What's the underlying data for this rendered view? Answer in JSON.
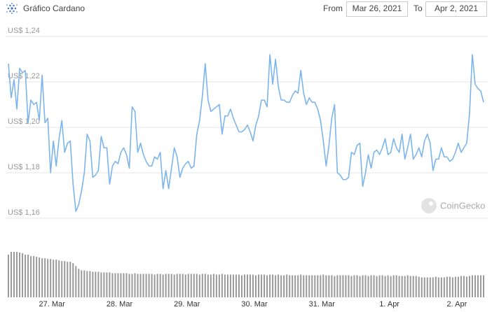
{
  "chart_data": {
    "type": "line",
    "title": "Gráfico Cardano",
    "range": {
      "from_label": "From",
      "from": "Mar 26, 2021",
      "to_label": "To",
      "to": "Apr 2, 2021"
    },
    "watermark": "CoinGecko",
    "color": "#7cb5ec",
    "volume_color": "#999999",
    "grid": true,
    "ylim": [
      1.16,
      1.24
    ],
    "yticks": [
      {
        "value": 1.16,
        "label": "US$ 1,16"
      },
      {
        "value": 1.18,
        "label": "US$ 1,18"
      },
      {
        "value": 1.2,
        "label": "US$ 1,20"
      },
      {
        "value": 1.22,
        "label": "US$ 1,22"
      },
      {
        "value": 1.24,
        "label": "US$ 1,24"
      }
    ],
    "categories": [
      null,
      null,
      null,
      null,
      null,
      null,
      null,
      null,
      null,
      null,
      null,
      null,
      null,
      null,
      null,
      null,
      "27. Mar",
      null,
      null,
      null,
      null,
      null,
      null,
      null,
      null,
      null,
      null,
      null,
      null,
      null,
      null,
      null,
      null,
      null,
      null,
      null,
      null,
      null,
      null,
      null,
      "28. Mar",
      null,
      null,
      null,
      null,
      null,
      null,
      null,
      null,
      null,
      null,
      null,
      null,
      null,
      null,
      null,
      null,
      null,
      null,
      null,
      null,
      null,
      null,
      null,
      "29. Mar",
      null,
      null,
      null,
      null,
      null,
      null,
      null,
      null,
      null,
      null,
      null,
      null,
      null,
      null,
      null,
      null,
      null,
      null,
      null,
      null,
      null,
      null,
      null,
      "30. Mar",
      null,
      null,
      null,
      null,
      null,
      null,
      null,
      null,
      null,
      null,
      null,
      null,
      null,
      null,
      null,
      null,
      null,
      null,
      null,
      null,
      null,
      null,
      null,
      "31. Mar",
      null,
      null,
      null,
      null,
      null,
      null,
      null,
      null,
      null,
      null,
      null,
      null,
      null,
      null,
      null,
      null,
      null,
      null,
      null,
      null,
      null,
      null,
      null,
      "1. Apr",
      null,
      null,
      null,
      null,
      null,
      null,
      null,
      null,
      null,
      null,
      null,
      null,
      null,
      null,
      null,
      null,
      null,
      null,
      null,
      null,
      null,
      null,
      null,
      "2. Apr",
      null,
      null,
      null,
      null,
      null,
      null,
      null,
      null,
      null
    ],
    "values": [
      1.228,
      1.213,
      1.221,
      1.208,
      1.226,
      1.224,
      1.225,
      1.202,
      1.212,
      1.21,
      1.211,
      1.203,
      1.223,
      1.202,
      1.204,
      1.18,
      1.194,
      1.183,
      1.195,
      1.203,
      1.189,
      1.193,
      1.194,
      1.175,
      1.163,
      1.166,
      1.172,
      1.18,
      1.197,
      1.194,
      1.178,
      1.179,
      1.181,
      1.196,
      1.191,
      1.191,
      1.175,
      1.183,
      1.185,
      1.184,
      1.189,
      1.191,
      1.188,
      1.182,
      1.209,
      1.207,
      1.189,
      1.193,
      1.188,
      1.185,
      1.183,
      1.183,
      1.187,
      1.186,
      1.189,
      1.173,
      1.181,
      1.173,
      1.182,
      1.191,
      1.187,
      1.178,
      1.182,
      1.184,
      1.185,
      1.182,
      1.183,
      1.197,
      1.203,
      1.214,
      1.228,
      1.212,
      1.207,
      1.208,
      1.209,
      1.21,
      1.197,
      1.205,
      1.205,
      1.208,
      1.204,
      1.201,
      1.198,
      1.198,
      1.199,
      1.201,
      1.198,
      1.194,
      1.201,
      1.205,
      1.212,
      1.212,
      1.209,
      1.232,
      1.219,
      1.23,
      1.218,
      1.212,
      1.212,
      1.211,
      1.211,
      1.214,
      1.216,
      1.215,
      1.225,
      1.215,
      1.21,
      1.213,
      1.211,
      1.211,
      1.208,
      1.203,
      1.194,
      1.183,
      1.192,
      1.204,
      1.21,
      1.18,
      1.179,
      1.177,
      1.177,
      1.178,
      1.189,
      1.188,
      1.192,
      1.193,
      1.174,
      1.18,
      1.188,
      1.182,
      1.189,
      1.19,
      1.188,
      1.191,
      1.195,
      1.188,
      1.189,
      1.195,
      1.191,
      1.189,
      1.197,
      1.186,
      1.191,
      1.197,
      1.186,
      1.188,
      1.191,
      1.187,
      1.194,
      1.197,
      1.193,
      1.181,
      1.186,
      1.186,
      1.191,
      1.187,
      1.187,
      1.185,
      1.186,
      1.189,
      1.193,
      1.189,
      1.191,
      1.193,
      1.206,
      1.232,
      1.219,
      1.217,
      1.216,
      1.211
    ],
    "volumes": [
      60,
      64,
      64,
      64,
      63,
      62,
      60,
      60,
      58,
      58,
      57,
      56,
      55,
      55,
      54,
      54,
      53,
      53,
      52,
      51,
      51,
      50,
      50,
      48,
      44,
      40,
      38,
      38,
      37,
      37,
      36,
      36,
      36,
      35,
      35,
      35,
      35,
      34,
      34,
      34,
      34,
      34,
      34,
      33,
      33,
      34,
      33,
      33,
      33,
      33,
      33,
      33,
      32,
      33,
      33,
      32,
      33,
      33,
      33,
      32,
      33,
      33,
      33,
      32,
      33,
      33,
      33,
      33,
      32,
      33,
      33,
      32,
      32,
      33,
      32,
      32,
      33,
      32,
      32,
      32,
      32,
      32,
      32,
      31,
      32,
      32,
      32,
      32,
      31,
      32,
      32,
      32,
      31,
      32,
      32,
      31,
      32,
      31,
      31,
      32,
      31,
      31,
      31,
      31,
      32,
      31,
      31,
      31,
      31,
      31,
      31,
      31,
      32,
      31,
      31,
      31,
      30,
      31,
      31,
      31,
      31,
      31,
      30,
      31,
      31,
      30,
      31,
      31,
      30,
      31,
      31,
      30,
      31,
      31,
      30,
      31,
      30,
      31,
      31,
      30,
      30,
      30,
      31,
      30,
      30,
      30,
      29,
      28,
      28,
      28,
      28,
      28,
      29,
      28,
      28,
      28,
      29,
      29,
      28,
      29,
      29,
      30,
      30,
      29,
      30,
      31,
      31,
      31,
      31,
      31
    ]
  }
}
